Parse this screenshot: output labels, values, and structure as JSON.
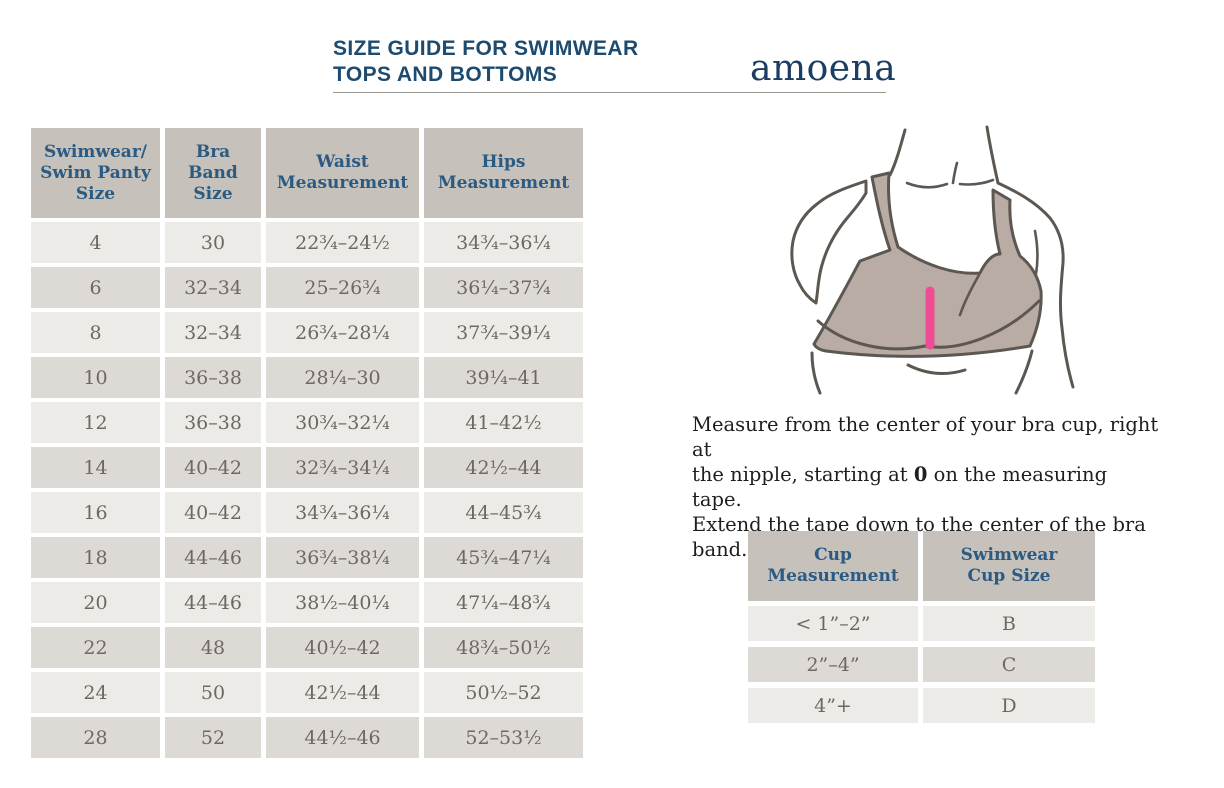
{
  "header": {
    "title_line1": "SIZE GUIDE FOR SWIMWEAR",
    "title_line2": "TOPS AND BOTTOMS",
    "brand": "amoena"
  },
  "size_table": {
    "headers": [
      {
        "line1": "Swimwear/",
        "line2": "Swim Panty",
        "line3": "Size"
      },
      {
        "line1": "Bra",
        "line2": "Band",
        "line3": "Size"
      },
      {
        "line1": "Waist",
        "line2": "Measurement"
      },
      {
        "line1": "Hips",
        "line2": "Measurement"
      }
    ],
    "rows": [
      [
        "4",
        "30",
        "22¾–24½",
        "34¾–36¼"
      ],
      [
        "6",
        "32–34",
        "25–26¾",
        "36¼–37¾"
      ],
      [
        "8",
        "32–34",
        "26¾–28¼",
        "37¾–39¼"
      ],
      [
        "10",
        "36–38",
        "28¼–30",
        "39¼–41"
      ],
      [
        "12",
        "36–38",
        "30¾–32¼",
        "41–42½"
      ],
      [
        "14",
        "40–42",
        "32¾–34¼",
        "42½–44"
      ],
      [
        "16",
        "40–42",
        "34¾–36¼",
        "44–45¾"
      ],
      [
        "18",
        "44–46",
        "36¾–38¼",
        "45¾–47¼"
      ],
      [
        "20",
        "44–46",
        "38½–40¼",
        "47¼–48¾"
      ],
      [
        "22",
        "48",
        "40½–42",
        "48¾–50½"
      ],
      [
        "24",
        "50",
        "42½–44",
        "50½–52"
      ],
      [
        "28",
        "52",
        "44½–46",
        "52–53½"
      ]
    ]
  },
  "instruction": {
    "line1": "Measure from the center of your bra cup, right at",
    "line2_pre": "the nipple, starting at ",
    "line2_bold": "0",
    "line2_post": " on the measuring tape.",
    "line3": "Extend the tape down to the center of the bra band."
  },
  "cup_table": {
    "headers": [
      {
        "line1": "Cup",
        "line2": "Measurement"
      },
      {
        "line1": "Swimwear",
        "line2": "Cup Size"
      }
    ],
    "rows": [
      [
        "< 1”–2”",
        "B"
      ],
      [
        "2”–4”",
        "C"
      ],
      [
        "4”+",
        "D"
      ]
    ]
  },
  "illustration": {
    "description": "bra measurement diagram",
    "measuring_line_color": "#ee4c95",
    "bra_fill_color": "#b8aca4",
    "outline_color": "#5d5752"
  },
  "colors": {
    "title_blue": "#1d4b70",
    "table_header_blue": "#2b5a82",
    "table_header_bg": "#c6c1ba",
    "row_light": "#edebe8",
    "row_dark": "#ddd9d5",
    "cell_text": "#6e6862"
  }
}
